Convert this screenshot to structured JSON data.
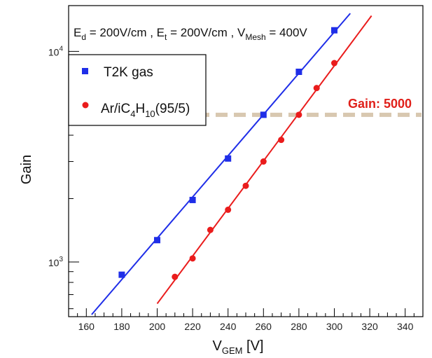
{
  "chart_data": {
    "type": "scatter",
    "xlabel": {
      "main": "V",
      "sub": "GEM",
      "unit": " [V]"
    },
    "ylabel": "Gain",
    "xlim": [
      150,
      350
    ],
    "ylim": [
      550,
      16500
    ],
    "yscale": "log",
    "x_ticks": [
      160,
      180,
      200,
      220,
      240,
      260,
      280,
      300,
      320,
      340
    ],
    "y_ticks": [
      {
        "value": 1000,
        "base": "10",
        "exp": "3"
      },
      {
        "value": 10000,
        "base": "10",
        "exp": "4"
      }
    ],
    "conditions": {
      "ed": {
        "main": "E",
        "sub": "d",
        "rest": " = 200V/cm , "
      },
      "et": {
        "main": "E",
        "sub": "t",
        "rest": " = 200V/cm , "
      },
      "vmesh": {
        "main": "V",
        "sub": "Mesh",
        "rest": " = 400V"
      }
    },
    "threshold": {
      "value": 5000,
      "label": "Gain: 5000",
      "color": "#d8c8b0",
      "label_color": "#e0201a"
    },
    "series": [
      {
        "name": "T2K gas",
        "marker": "square",
        "color": "#1f2ee8",
        "x": [
          180,
          200,
          220,
          240,
          260,
          280,
          300
        ],
        "y": [
          870,
          1270,
          1970,
          3100,
          5000,
          8000,
          12600
        ],
        "fit": {
          "x": [
            163,
            309
          ]
        }
      },
      {
        "name": "Ar/iC4H10(95/5)",
        "marker": "circle",
        "color": "#ea1c1c",
        "x": [
          210,
          220,
          230,
          240,
          250,
          260,
          270,
          280,
          290,
          300
        ],
        "y": [
          850,
          1040,
          1420,
          1770,
          2300,
          3000,
          3800,
          5000,
          6700,
          8800
        ],
        "fit": {
          "x": [
            200,
            321
          ]
        }
      }
    ]
  },
  "legend": {
    "t2k_label": "T2K gas",
    "ar_parts": {
      "a": "Ar/iC",
      "s1": "4",
      "b": "H",
      "s2": "10",
      "c": "(95/5)"
    }
  }
}
